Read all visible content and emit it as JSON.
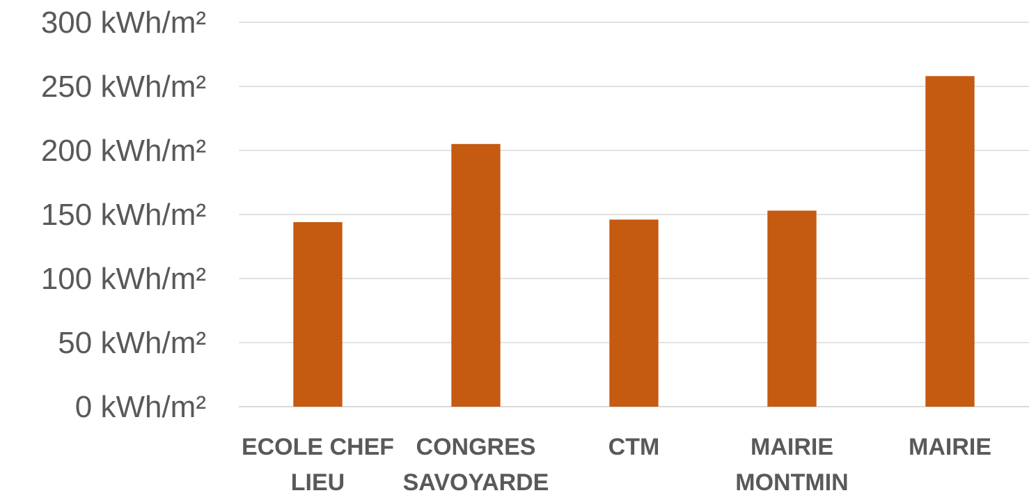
{
  "chart_data": {
    "type": "bar",
    "title": "",
    "xlabel": "",
    "ylabel": "",
    "categories": [
      [
        "ECOLE CHEF",
        "LIEU"
      ],
      [
        "CONGRES",
        "SAVOYARDE"
      ],
      [
        "CTM"
      ],
      [
        "MAIRIE",
        "MONTMIN"
      ],
      [
        "MAIRIE"
      ]
    ],
    "series": [
      {
        "values": [
          144,
          205,
          146,
          153,
          258
        ],
        "color": "#c55a11"
      }
    ],
    "ylim": [
      0,
      300
    ],
    "yticks": [
      {
        "value": 0,
        "label": "0 kWh/m²"
      },
      {
        "value": 50,
        "label": "50 kWh/m²"
      },
      {
        "value": 100,
        "label": "100 kWh/m²"
      },
      {
        "value": 150,
        "label": "150 kWh/m²"
      },
      {
        "value": 200,
        "label": "200 kWh/m²"
      },
      {
        "value": 250,
        "label": "250 kWh/m²"
      },
      {
        "value": 300,
        "label": "300 kWh/m²"
      }
    ],
    "grid": true,
    "legend": "none",
    "gridline_color": "#d9d9d9",
    "text_color": "#595959"
  }
}
